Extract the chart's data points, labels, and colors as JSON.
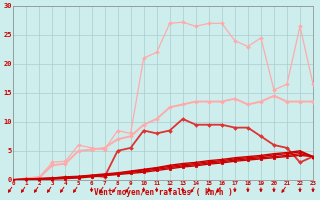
{
  "x": [
    0,
    1,
    2,
    3,
    4,
    5,
    6,
    7,
    8,
    9,
    10,
    11,
    12,
    13,
    14,
    15,
    16,
    17,
    18,
    19,
    20,
    21,
    22,
    23
  ],
  "background_color": "#ceeeed",
  "grid_color": "#aacccc",
  "xlabel": "Vent moyen/en rafales ( km/h )",
  "xlabel_color": "#cc0000",
  "tick_color": "#cc0000",
  "ylim": [
    0,
    30
  ],
  "xlim": [
    0,
    23
  ],
  "yticks": [
    0,
    5,
    10,
    15,
    20,
    25,
    30
  ],
  "series": [
    {
      "color": "#ffaaaa",
      "linewidth": 0.9,
      "marker": "D",
      "markersize": 2.0,
      "y": [
        0,
        0.3,
        0.5,
        3.0,
        3.2,
        6.0,
        5.5,
        5.2,
        8.5,
        8.0,
        21.0,
        22.0,
        27.0,
        27.2,
        26.5,
        27.0,
        27.0,
        24.0,
        23.0,
        24.5,
        15.5,
        16.5,
        26.5,
        16.5
      ]
    },
    {
      "color": "#ffaaaa",
      "linewidth": 1.4,
      "marker": "D",
      "markersize": 2.0,
      "y": [
        0,
        0.2,
        0.4,
        2.5,
        2.8,
        5.0,
        5.2,
        5.5,
        7.0,
        7.5,
        9.5,
        10.5,
        12.5,
        13.0,
        13.5,
        13.5,
        13.5,
        14.0,
        13.0,
        13.5,
        14.5,
        13.5,
        13.5,
        13.5
      ]
    },
    {
      "color": "#dd3333",
      "linewidth": 1.3,
      "marker": "D",
      "markersize": 2.0,
      "y": [
        0,
        0.1,
        0.2,
        0.3,
        0.4,
        0.5,
        0.7,
        0.5,
        5.0,
        5.5,
        8.5,
        8.0,
        8.5,
        10.5,
        9.5,
        9.5,
        9.5,
        9.0,
        9.0,
        7.5,
        6.0,
        5.5,
        3.0,
        4.0
      ]
    },
    {
      "color": "#cc0000",
      "linewidth": 1.0,
      "marker": "^",
      "markersize": 2.0,
      "y": [
        0,
        0.1,
        0.2,
        0.3,
        0.5,
        0.6,
        0.8,
        1.0,
        1.2,
        1.5,
        1.8,
        2.1,
        2.5,
        2.8,
        3.0,
        3.3,
        3.5,
        3.8,
        4.0,
        4.2,
        4.5,
        4.7,
        5.0,
        4.0
      ]
    },
    {
      "color": "#cc0000",
      "linewidth": 1.0,
      "marker": "^",
      "markersize": 2.0,
      "y": [
        0,
        0.1,
        0.15,
        0.25,
        0.4,
        0.5,
        0.7,
        0.9,
        1.1,
        1.4,
        1.7,
        2.0,
        2.3,
        2.6,
        2.8,
        3.1,
        3.3,
        3.6,
        3.8,
        4.0,
        4.3,
        4.5,
        4.8,
        4.0
      ]
    },
    {
      "color": "#cc0000",
      "linewidth": 1.0,
      "marker": "^",
      "markersize": 2.0,
      "y": [
        0,
        0.05,
        0.1,
        0.2,
        0.35,
        0.45,
        0.65,
        0.85,
        1.0,
        1.3,
        1.5,
        1.8,
        2.1,
        2.4,
        2.6,
        2.9,
        3.1,
        3.4,
        3.6,
        3.8,
        4.0,
        4.2,
        4.5,
        4.0
      ]
    },
    {
      "color": "#cc0000",
      "linewidth": 1.0,
      "marker": "^",
      "markersize": 1.8,
      "y": [
        0,
        0.0,
        0.05,
        0.1,
        0.2,
        0.3,
        0.5,
        0.7,
        0.9,
        1.1,
        1.3,
        1.6,
        1.9,
        2.2,
        2.4,
        2.7,
        2.9,
        3.2,
        3.4,
        3.6,
        3.8,
        4.0,
        4.2,
        4.0
      ]
    }
  ],
  "arrow_diag": [
    1,
    1,
    1,
    1,
    1,
    1,
    0,
    1,
    1,
    1,
    0,
    0,
    0,
    0,
    1,
    0,
    1,
    0,
    0,
    0,
    0,
    1,
    0,
    0
  ],
  "xtick_labels": [
    "0",
    "1",
    "2",
    "3",
    "4",
    "5",
    "6",
    "7",
    "8",
    "9",
    "10",
    "11",
    "12",
    "13",
    "14",
    "15",
    "16",
    "17",
    "18",
    "19",
    "20",
    "21",
    "22",
    "23"
  ]
}
